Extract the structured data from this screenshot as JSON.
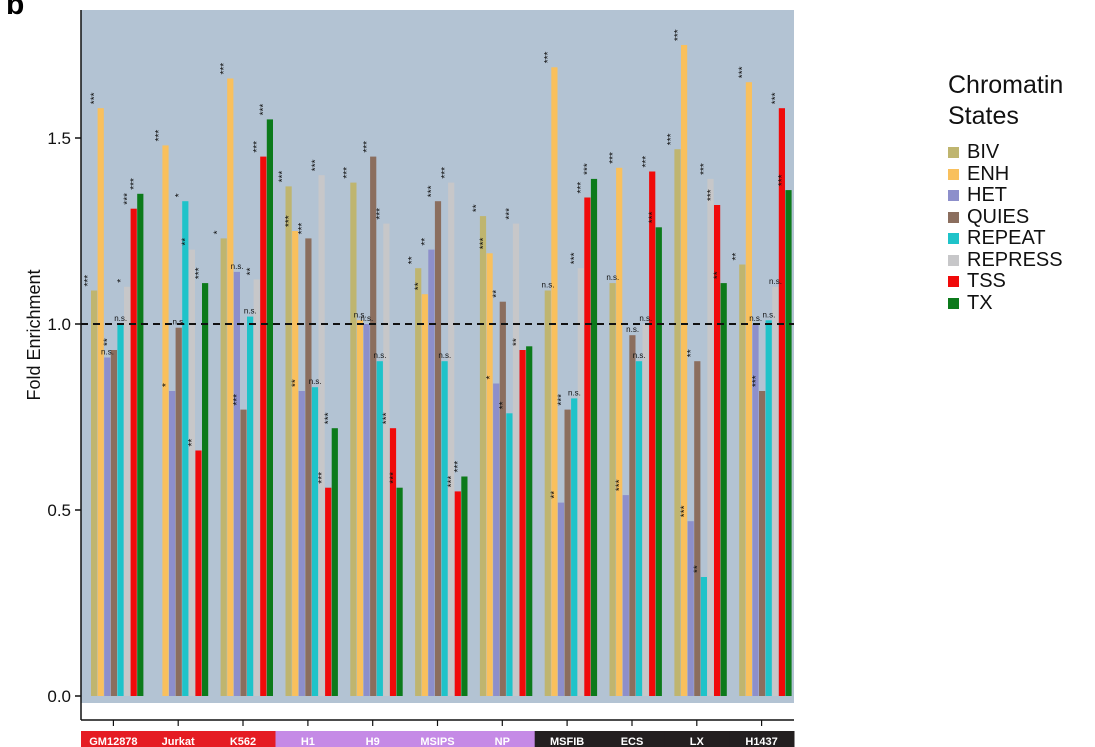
{
  "panel_label": "b",
  "legend": {
    "title": "Chromatin States",
    "items": [
      {
        "label": "BIV",
        "color": "#bfb56f"
      },
      {
        "label": "ENH",
        "color": "#f9c05d"
      },
      {
        "label": "HET",
        "color": "#8d8fcb"
      },
      {
        "label": "QUIES",
        "color": "#8b6e5e"
      },
      {
        "label": "REPEAT",
        "color": "#1fc3c9"
      },
      {
        "label": "REPRESS",
        "color": "#c7c7c9"
      },
      {
        "label": "TSS",
        "color": "#f00a0a"
      },
      {
        "label": "TX",
        "color": "#0c7a1b"
      }
    ]
  },
  "chart_data": {
    "type": "bar",
    "ylabel": "Fold Enrichment",
    "ylim": [
      -0.05,
      1.85
    ],
    "yticks": [
      "0.0",
      "0.5",
      "1.0",
      "1.5"
    ],
    "reference_line": 1.0,
    "background": "#b3c3d3",
    "categories": [
      "GM12878",
      "Jurkat",
      "K562",
      "H1",
      "H9",
      "MSIPS",
      "NP",
      "MSFIB",
      "ECS",
      "LX",
      "H1437"
    ],
    "category_colors": [
      "#e51c23",
      "#e51c23",
      "#e51c23",
      "#c58ae6",
      "#c58ae6",
      "#c58ae6",
      "#c58ae6",
      "#231f20",
      "#231f20",
      "#231f20",
      "#231f20"
    ],
    "series": [
      {
        "name": "BIV",
        "values": [
          1.09,
          null,
          1.23,
          1.37,
          1.38,
          1.15,
          1.29,
          1.09,
          1.11,
          1.47,
          1.16
        ],
        "labels": [
          "***",
          "",
          "*",
          "***",
          "***",
          "**",
          "**",
          "n.s.",
          "n.s.",
          "***",
          "**"
        ]
      },
      {
        "name": "ENH",
        "values": [
          1.58,
          1.48,
          1.66,
          1.25,
          1.01,
          1.08,
          1.19,
          1.69,
          1.42,
          1.75,
          1.65
        ],
        "labels": [
          "***",
          "***",
          "***",
          "***",
          "n.s.",
          "**",
          "***",
          "***",
          "***",
          "***",
          "***"
        ]
      },
      {
        "name": "HET",
        "values": [
          0.91,
          0.82,
          1.14,
          0.82,
          1.0,
          1.2,
          0.84,
          0.52,
          0.54,
          0.47,
          1.0
        ],
        "labels": [
          "n.s.",
          "*",
          "n.s.",
          "**",
          "n.s.",
          "**",
          "*",
          "**",
          "***",
          "***",
          "n.s."
        ]
      },
      {
        "name": "QUIES",
        "values": [
          0.93,
          0.99,
          0.77,
          1.23,
          1.45,
          1.33,
          1.06,
          0.77,
          0.97,
          0.9,
          0.82
        ],
        "labels": [
          "**",
          "n.s.",
          "***",
          "***",
          "***",
          "***",
          "**",
          "***",
          "n.s.",
          "**",
          "***"
        ]
      },
      {
        "name": "REPEAT",
        "values": [
          1.0,
          1.33,
          1.02,
          0.83,
          0.9,
          0.9,
          0.76,
          0.8,
          0.9,
          0.32,
          1.01
        ],
        "labels": [
          "n.s.",
          "*",
          "n.s.",
          "n.s.",
          "n.s.",
          "n.s.",
          "**",
          "n.s.",
          "n.s.",
          "**",
          "n.s."
        ]
      },
      {
        "name": "REPRESS",
        "values": [
          1.1,
          1.2,
          1.12,
          1.4,
          1.27,
          1.38,
          1.27,
          1.15,
          1.0,
          1.39,
          1.1
        ],
        "labels": [
          "*",
          "**",
          "**",
          "***",
          "***",
          "***",
          "***",
          "***",
          "n.s.",
          "***",
          "n.s."
        ]
      },
      {
        "name": "TSS",
        "values": [
          1.31,
          0.66,
          1.45,
          0.56,
          0.72,
          0.55,
          0.93,
          1.34,
          1.41,
          1.32,
          1.58
        ],
        "labels": [
          "***",
          "**",
          "***",
          "***",
          "***",
          "***",
          "**",
          "***",
          "***",
          "***",
          "***"
        ]
      },
      {
        "name": "TX",
        "values": [
          1.35,
          1.11,
          1.55,
          0.72,
          0.56,
          0.59,
          0.94,
          1.39,
          1.26,
          1.11,
          1.36
        ],
        "labels": [
          "***",
          "***",
          "***",
          "***",
          "***",
          "***",
          "",
          "***",
          "***",
          "**",
          "***"
        ]
      }
    ]
  }
}
